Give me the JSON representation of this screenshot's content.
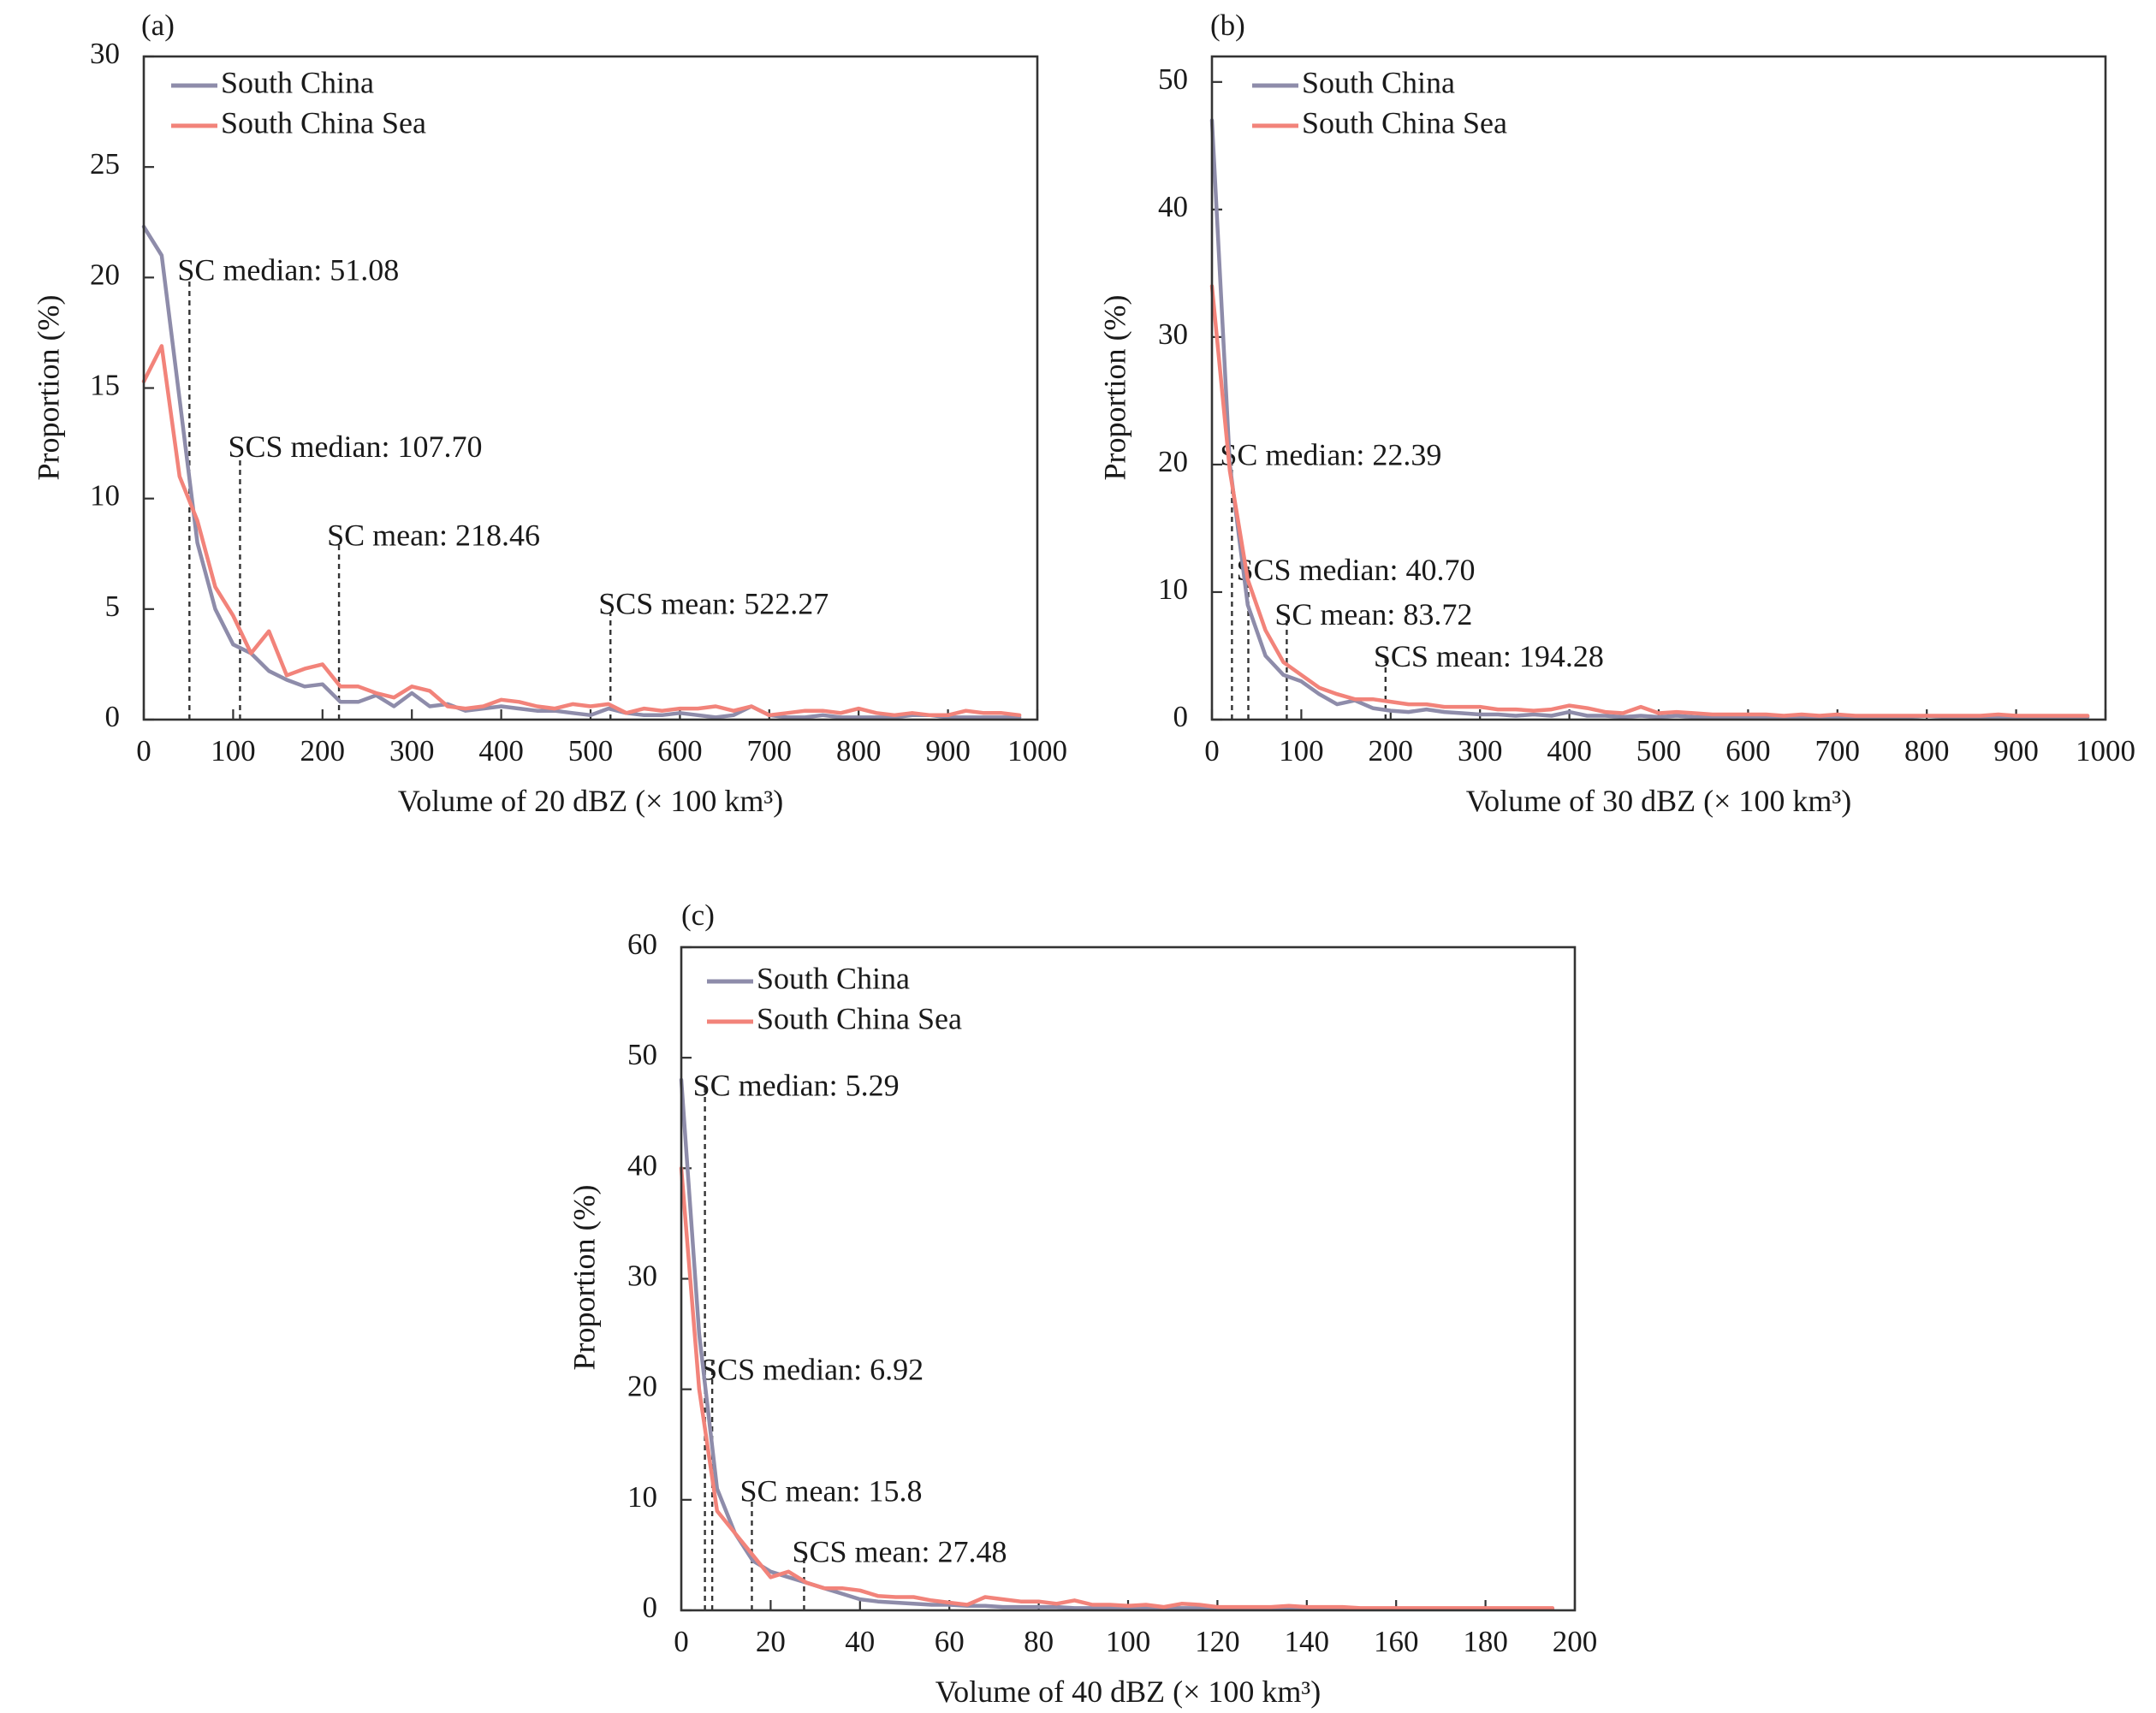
{
  "colors": {
    "south_china": "#8e8caa",
    "south_china_sea": "#f2837a",
    "frame": "#333333"
  },
  "chart_data": [
    {
      "panel": "(a)",
      "type": "line",
      "xlabel": "Volume of 20 dBZ (× 100 km³)",
      "ylabel": "Proportion (%)",
      "xlim": [
        0,
        1000
      ],
      "ylim": [
        0,
        30
      ],
      "xticks": [
        0,
        100,
        200,
        300,
        400,
        500,
        600,
        700,
        800,
        900,
        1000
      ],
      "yticks": [
        0,
        5,
        10,
        15,
        20,
        25,
        30
      ],
      "legend": "top-left",
      "series": [
        {
          "name": "South China",
          "color": "#8e8caa",
          "x": [
            0,
            20,
            40,
            60,
            80,
            100,
            120,
            140,
            160,
            180,
            200,
            220,
            240,
            260,
            280,
            300,
            320,
            340,
            360,
            380,
            400,
            420,
            440,
            460,
            480,
            500,
            520,
            540,
            560,
            580,
            600,
            620,
            640,
            660,
            680,
            700,
            720,
            740,
            760,
            780,
            800,
            820,
            840,
            860,
            880,
            900,
            920,
            940,
            960,
            980
          ],
          "y": [
            22.3,
            21.0,
            14.5,
            8.0,
            5.0,
            3.4,
            3.0,
            2.2,
            1.8,
            1.5,
            1.6,
            0.8,
            0.8,
            1.1,
            0.6,
            1.2,
            0.6,
            0.7,
            0.4,
            0.5,
            0.6,
            0.5,
            0.4,
            0.4,
            0.3,
            0.2,
            0.5,
            0.3,
            0.2,
            0.2,
            0.3,
            0.2,
            0.1,
            0.2,
            0.6,
            0.2,
            0.1,
            0.1,
            0.2,
            0.1,
            0.1,
            0.1,
            0.1,
            0.2,
            0.2,
            0.1,
            0.1,
            0.1,
            0.1,
            0.1
          ]
        },
        {
          "name": "South China Sea",
          "color": "#f2837a",
          "x": [
            0,
            20,
            40,
            60,
            80,
            100,
            120,
            140,
            160,
            180,
            200,
            220,
            240,
            260,
            280,
            300,
            320,
            340,
            360,
            380,
            400,
            420,
            440,
            460,
            480,
            500,
            520,
            540,
            560,
            580,
            600,
            620,
            640,
            660,
            680,
            700,
            720,
            740,
            760,
            780,
            800,
            820,
            840,
            860,
            880,
            900,
            920,
            940,
            960,
            980
          ],
          "y": [
            15.3,
            16.9,
            11.0,
            9.0,
            6.0,
            4.7,
            3.0,
            4.0,
            2.0,
            2.3,
            2.5,
            1.5,
            1.5,
            1.2,
            1.0,
            1.5,
            1.3,
            0.6,
            0.5,
            0.6,
            0.9,
            0.8,
            0.6,
            0.5,
            0.7,
            0.6,
            0.7,
            0.3,
            0.5,
            0.4,
            0.5,
            0.5,
            0.6,
            0.4,
            0.6,
            0.2,
            0.3,
            0.4,
            0.4,
            0.3,
            0.5,
            0.3,
            0.2,
            0.3,
            0.2,
            0.2,
            0.4,
            0.3,
            0.3,
            0.2
          ]
        }
      ],
      "annotations": [
        {
          "text": "SC median: 51.08",
          "x": 51.08,
          "line_top": 20.0,
          "label_y": 20.2
        },
        {
          "text": "SCS median: 107.70",
          "x": 107.7,
          "line_top": 12.0,
          "label_y": 12.2
        },
        {
          "text": "SC mean: 218.46",
          "x": 218.46,
          "line_top": 8.0,
          "label_y": 8.2
        },
        {
          "text": "SCS mean: 522.27",
          "x": 522.27,
          "line_top": 4.8,
          "label_y": 5.1
        }
      ]
    },
    {
      "panel": "(b)",
      "type": "line",
      "xlabel": "Volume of 30 dBZ (× 100 km³)",
      "ylabel": "Proportion (%)",
      "xlim": [
        0,
        1000
      ],
      "ylim": [
        0,
        52
      ],
      "xticks": [
        0,
        100,
        200,
        300,
        400,
        500,
        600,
        700,
        800,
        900,
        1000
      ],
      "yticks": [
        0,
        10,
        20,
        30,
        40,
        50
      ],
      "legend": "top-left",
      "series": [
        {
          "name": "South China",
          "color": "#8e8caa",
          "x": [
            0,
            20,
            40,
            60,
            80,
            100,
            120,
            140,
            160,
            180,
            200,
            220,
            240,
            260,
            280,
            300,
            320,
            340,
            360,
            380,
            400,
            420,
            440,
            460,
            480,
            500,
            520,
            540,
            560,
            580,
            600,
            620,
            640,
            660,
            680,
            700,
            720,
            740,
            760,
            780,
            800,
            820,
            840,
            860,
            880,
            900,
            920,
            940,
            960,
            980
          ],
          "y": [
            47.0,
            20.0,
            9.0,
            5.0,
            3.5,
            3.0,
            2.0,
            1.2,
            1.5,
            0.9,
            0.7,
            0.6,
            0.8,
            0.6,
            0.5,
            0.4,
            0.4,
            0.3,
            0.4,
            0.3,
            0.6,
            0.3,
            0.3,
            0.2,
            0.3,
            0.2,
            0.3,
            0.2,
            0.2,
            0.2,
            0.2,
            0.2,
            0.2,
            0.2,
            0.2,
            0.2,
            0.2,
            0.2,
            0.2,
            0.2,
            0.3,
            0.2,
            0.2,
            0.2,
            0.2,
            0.2,
            0.2,
            0.2,
            0.2,
            0.2
          ]
        },
        {
          "name": "South China Sea",
          "color": "#f2837a",
          "x": [
            0,
            20,
            40,
            60,
            80,
            100,
            120,
            140,
            160,
            180,
            200,
            220,
            240,
            260,
            280,
            300,
            320,
            340,
            360,
            380,
            400,
            420,
            440,
            460,
            480,
            500,
            520,
            540,
            560,
            580,
            600,
            620,
            640,
            660,
            680,
            700,
            720,
            740,
            760,
            780,
            800,
            820,
            840,
            860,
            880,
            900,
            920,
            940,
            960,
            980
          ],
          "y": [
            34.0,
            19.5,
            11.0,
            7.0,
            4.5,
            3.5,
            2.5,
            2.0,
            1.6,
            1.6,
            1.4,
            1.2,
            1.2,
            1.0,
            1.0,
            1.0,
            0.8,
            0.8,
            0.7,
            0.8,
            1.1,
            0.9,
            0.6,
            0.5,
            1.0,
            0.5,
            0.6,
            0.5,
            0.4,
            0.4,
            0.4,
            0.4,
            0.3,
            0.4,
            0.3,
            0.4,
            0.3,
            0.3,
            0.3,
            0.3,
            0.3,
            0.3,
            0.3,
            0.3,
            0.4,
            0.3,
            0.3,
            0.3,
            0.3,
            0.3
          ]
        }
      ],
      "annotations": [
        {
          "text": "SC median: 22.39",
          "x": 22.39,
          "line_top": 20.0,
          "label_y": 20.5
        },
        {
          "text": "SCS median: 40.70",
          "x": 40.7,
          "line_top": 12.0,
          "label_y": 11.5
        },
        {
          "text": "SC mean: 83.72",
          "x": 83.72,
          "line_top": 8.0,
          "label_y": 8.0
        },
        {
          "text": "SCS mean: 194.28",
          "x": 194.28,
          "line_top": 5.0,
          "label_y": 4.7
        }
      ]
    },
    {
      "panel": "(c)",
      "type": "line",
      "xlabel": "Volume of 40 dBZ (× 100 km³)",
      "ylabel": "Proportion (%)",
      "xlim": [
        0,
        200
      ],
      "ylim": [
        0,
        60
      ],
      "xticks": [
        0,
        20,
        40,
        60,
        80,
        100,
        120,
        140,
        160,
        180,
        200
      ],
      "yticks": [
        0,
        10,
        20,
        30,
        40,
        50,
        60
      ],
      "legend": "top-left",
      "series": [
        {
          "name": "South China",
          "color": "#8e8caa",
          "x": [
            0,
            4,
            8,
            12,
            16,
            20,
            24,
            28,
            32,
            36,
            40,
            44,
            48,
            52,
            56,
            60,
            64,
            68,
            72,
            76,
            80,
            84,
            88,
            92,
            96,
            100,
            104,
            108,
            112,
            116,
            120,
            124,
            128,
            132,
            136,
            140,
            144,
            148,
            152,
            156,
            160,
            164,
            168,
            172,
            176,
            180,
            184,
            188,
            192,
            195
          ],
          "y": [
            48.0,
            25.0,
            11.0,
            7.0,
            4.5,
            3.5,
            3.0,
            2.5,
            2.0,
            1.5,
            1.0,
            0.8,
            0.7,
            0.6,
            0.5,
            0.5,
            0.4,
            0.4,
            0.3,
            0.3,
            0.3,
            0.3,
            0.2,
            0.2,
            0.2,
            0.2,
            0.2,
            0.2,
            0.2,
            0.2,
            0.2,
            0.1,
            0.1,
            0.1,
            0.1,
            0.1,
            0.1,
            0.1,
            0.1,
            0.1,
            0.1,
            0.1,
            0.1,
            0.1,
            0.1,
            0.1,
            0.1,
            0.1,
            0.1,
            0.1
          ]
        },
        {
          "name": "South China Sea",
          "color": "#f2837a",
          "x": [
            0,
            4,
            8,
            12,
            16,
            20,
            24,
            28,
            32,
            36,
            40,
            44,
            48,
            52,
            56,
            60,
            64,
            68,
            72,
            76,
            80,
            84,
            88,
            92,
            96,
            100,
            104,
            108,
            112,
            116,
            120,
            124,
            128,
            132,
            136,
            140,
            144,
            148,
            152,
            156,
            160,
            164,
            168,
            172,
            176,
            180,
            184,
            188,
            192,
            195
          ],
          "y": [
            40.0,
            20.0,
            9.0,
            7.0,
            5.0,
            3.0,
            3.5,
            2.5,
            2.0,
            2.0,
            1.8,
            1.3,
            1.2,
            1.2,
            0.9,
            0.7,
            0.5,
            1.2,
            1.0,
            0.8,
            0.8,
            0.6,
            0.9,
            0.5,
            0.5,
            0.4,
            0.5,
            0.3,
            0.6,
            0.5,
            0.3,
            0.3,
            0.3,
            0.3,
            0.4,
            0.3,
            0.3,
            0.3,
            0.2,
            0.2,
            0.2,
            0.2,
            0.2,
            0.2,
            0.2,
            0.2,
            0.2,
            0.2,
            0.2,
            0.2
          ]
        }
      ],
      "annotations": [
        {
          "text": "SC median: 5.29",
          "x": 5.29,
          "line_top": 47.5,
          "label_y": 47.2
        },
        {
          "text": "SCS median: 6.92",
          "x": 6.92,
          "line_top": 22.5,
          "label_y": 21.5
        },
        {
          "text": "SC mean: 15.8",
          "x": 15.8,
          "line_top": 10.0,
          "label_y": 10.5
        },
        {
          "text": "SCS mean: 27.48",
          "x": 27.48,
          "line_top": 4.8,
          "label_y": 5.0
        }
      ]
    }
  ]
}
